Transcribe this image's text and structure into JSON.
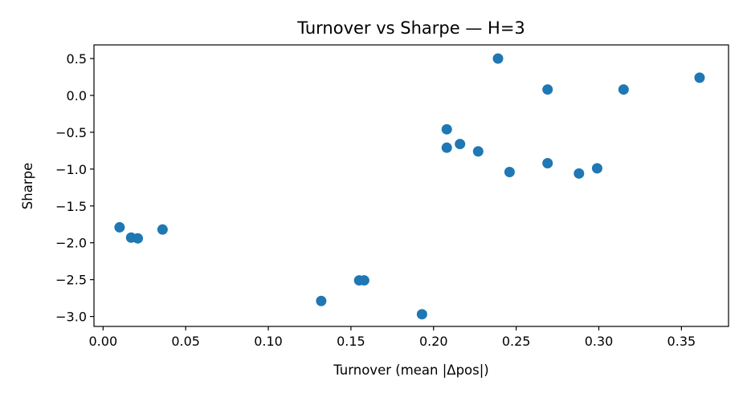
{
  "chart_data": {
    "type": "scatter",
    "title": "Turnover vs Sharpe — H=3",
    "xlabel": "Turnover (mean |Δpos|)",
    "ylabel": "Sharpe",
    "xlim": [
      -0.0055,
      0.3785
    ],
    "ylim": [
      -3.135,
      0.685
    ],
    "xticks": [
      0.0,
      0.05,
      0.1,
      0.15,
      0.2,
      0.25,
      0.3,
      0.35
    ],
    "xtick_labels": [
      "0.00",
      "0.05",
      "0.10",
      "0.15",
      "0.20",
      "0.25",
      "0.30",
      "0.35"
    ],
    "yticks": [
      -3.0,
      -2.5,
      -2.0,
      -1.5,
      -1.0,
      -0.5,
      0.0,
      0.5
    ],
    "ytick_labels": [
      "−3.0",
      "−2.5",
      "−2.0",
      "−1.5",
      "−1.0",
      "−0.5",
      "0.0",
      "0.5"
    ],
    "grid": false,
    "marker_color": "#1f77b4",
    "points": [
      {
        "x": 0.01,
        "y": -1.79
      },
      {
        "x": 0.017,
        "y": -1.93
      },
      {
        "x": 0.021,
        "y": -1.94
      },
      {
        "x": 0.036,
        "y": -1.82
      },
      {
        "x": 0.132,
        "y": -2.79
      },
      {
        "x": 0.155,
        "y": -2.51
      },
      {
        "x": 0.158,
        "y": -2.51
      },
      {
        "x": 0.193,
        "y": -2.97
      },
      {
        "x": 0.208,
        "y": -0.46
      },
      {
        "x": 0.208,
        "y": -0.71
      },
      {
        "x": 0.216,
        "y": -0.66
      },
      {
        "x": 0.227,
        "y": -0.76
      },
      {
        "x": 0.239,
        "y": 0.5
      },
      {
        "x": 0.246,
        "y": -1.04
      },
      {
        "x": 0.269,
        "y": 0.08
      },
      {
        "x": 0.269,
        "y": -0.92
      },
      {
        "x": 0.288,
        "y": -1.06
      },
      {
        "x": 0.299,
        "y": -0.99
      },
      {
        "x": 0.315,
        "y": 0.08
      },
      {
        "x": 0.361,
        "y": 0.24
      }
    ]
  }
}
